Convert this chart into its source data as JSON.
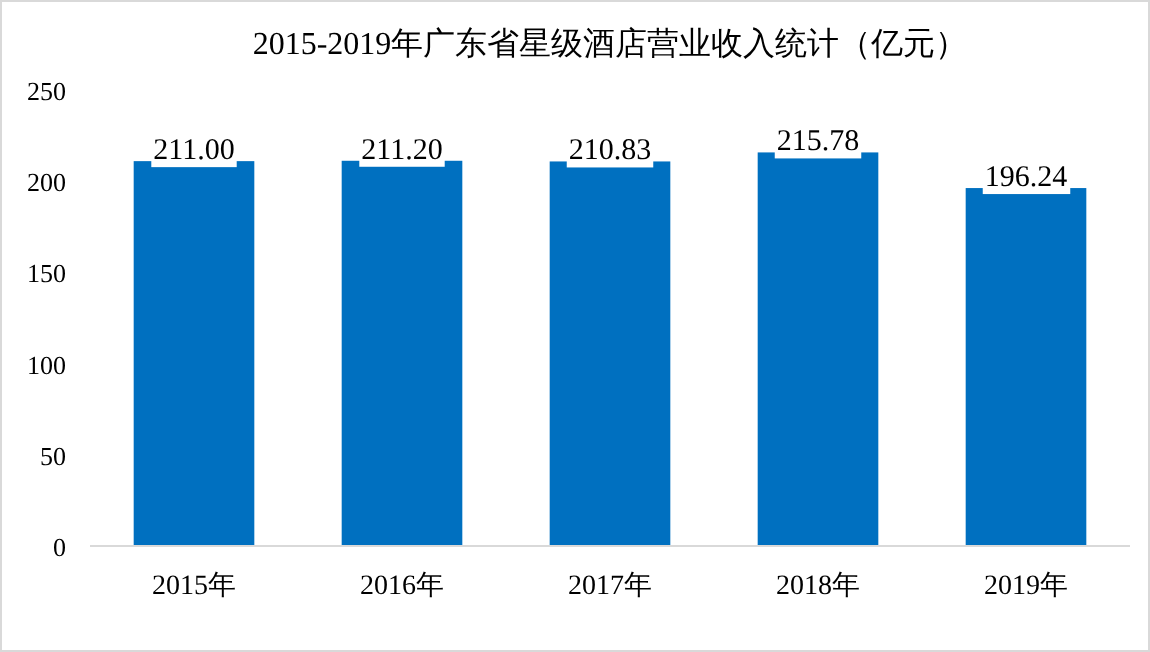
{
  "chart_data": {
    "type": "bar",
    "title": "2015-2019年广东省星级酒店营业收入统计（亿元）",
    "categories": [
      "2015年",
      "2016年",
      "2017年",
      "2018年",
      "2019年"
    ],
    "values": [
      211.0,
      211.2,
      210.83,
      215.78,
      196.24
    ],
    "value_labels": [
      "211.00",
      "211.20",
      "210.83",
      "215.78",
      "196.24"
    ],
    "color": "#0070c0",
    "ylim": [
      0,
      250
    ],
    "yticks": [
      0,
      50,
      100,
      150,
      200,
      250
    ]
  }
}
